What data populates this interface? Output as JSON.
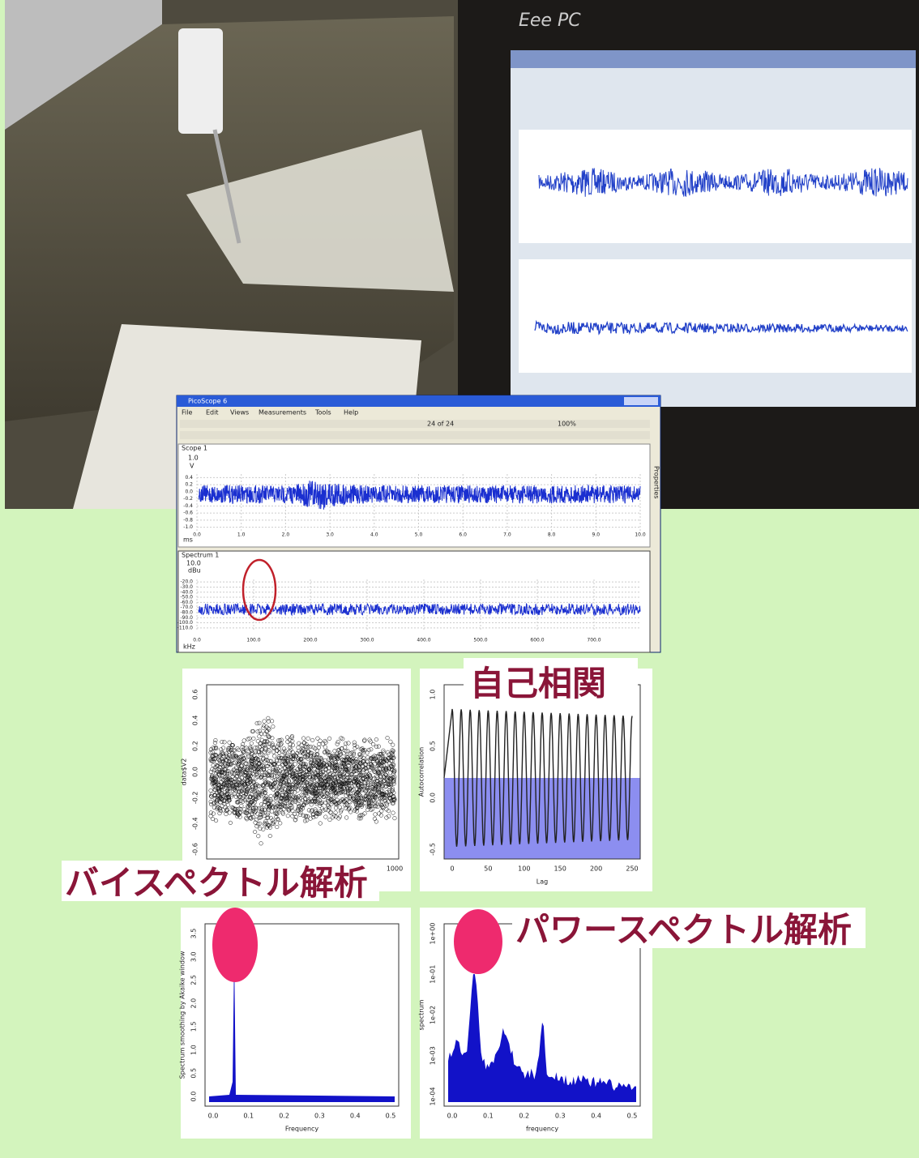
{
  "photo": {
    "brand": "Eee PC"
  },
  "picoscope": {
    "title": "PicoScope 6",
    "menu": [
      "File",
      "Edit",
      "Views",
      "Measurements",
      "Tools",
      "Help"
    ],
    "buffer": "24 of 24",
    "zoom": "100%",
    "side_tab": "Properties",
    "scope": {
      "tab": "Scope 1",
      "y_top": "1.0",
      "y_unit": "V",
      "yticks": [
        "0.4",
        "0.2",
        "0.0",
        "-0.2",
        "-0.4",
        "-0.6",
        "-0.8",
        "-1.0"
      ],
      "xticks": [
        "0.0",
        "1.0",
        "2.0",
        "3.0",
        "4.0",
        "5.0",
        "6.0",
        "7.0",
        "8.0",
        "9.0",
        "10.0"
      ],
      "x_unit": "ms"
    },
    "spectrum": {
      "tab": "Spectrum 1",
      "y_top": "10.0",
      "y_unit": "dBu",
      "yticks": [
        "-20.0",
        "-30.0",
        "-40.0",
        "-50.0",
        "-60.0",
        "-70.0",
        "-80.0",
        "-90.0",
        "-100.0",
        "-110.0"
      ],
      "xticks": [
        "0.0",
        "100.0",
        "200.0",
        "300.0",
        "400.0",
        "500.0",
        "600.0",
        "700.0"
      ],
      "x_unit": "kHz"
    }
  },
  "plots": [
    {
      "ylabel": "data$V2",
      "yticks": [
        "0.6",
        "0.4",
        "0.2",
        "0.0",
        "-0.2",
        "-0.4",
        "-0.6"
      ],
      "xticks": [
        "1000"
      ]
    },
    {
      "ylabel": "Autocorrelation",
      "xlabel": "Lag",
      "yticks": [
        "1.0",
        "0.5",
        "0.0",
        "-0.5"
      ],
      "xticks": [
        "0",
        "50",
        "100",
        "150",
        "200",
        "250"
      ]
    },
    {
      "ylabel": "Spectrum smoothing by Akaike window",
      "xlabel": "Frequency",
      "yticks": [
        "3.5",
        "3.0",
        "2.5",
        "2.0",
        "1.5",
        "1.0",
        "0.5",
        "0.0"
      ],
      "xticks": [
        "0.0",
        "0.1",
        "0.2",
        "0.3",
        "0.4",
        "0.5"
      ]
    },
    {
      "ylabel": "spectrum",
      "xlabel": "frequency",
      "yticks": [
        "1e+00",
        "1e-01",
        "1e-02",
        "1e-03",
        "1e-04"
      ],
      "xticks": [
        "0.0",
        "0.1",
        "0.2",
        "0.3",
        "0.4",
        "0.5"
      ]
    }
  ],
  "annotations": {
    "autocorrelation": "自己相関",
    "bispectrum": "バイスペクトル解析",
    "power_spectrum": "パワースペクトル解析"
  }
}
